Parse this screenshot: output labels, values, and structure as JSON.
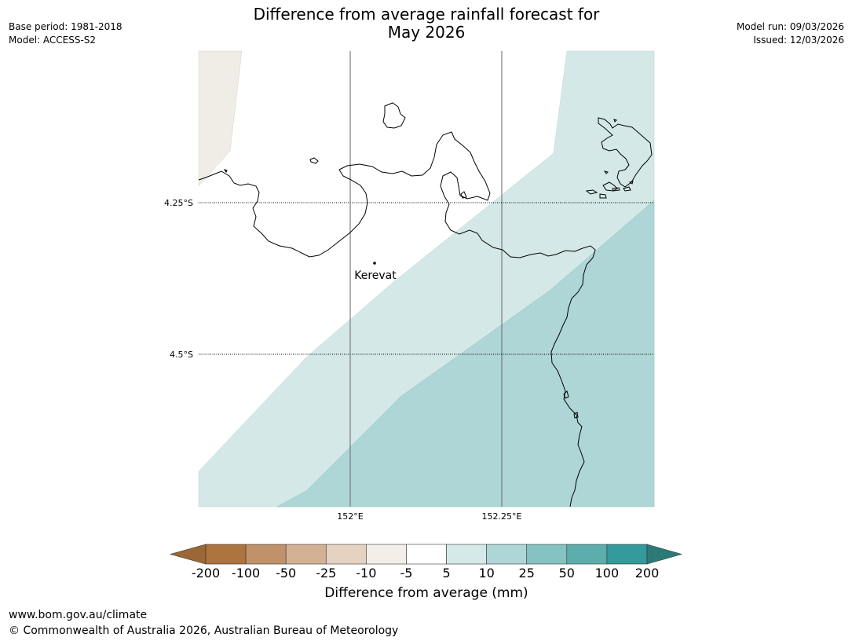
{
  "title": {
    "line1": "Difference from average rainfall forecast for",
    "line2": "May 2026"
  },
  "meta_left": {
    "base_period": "Base period: 1981-2018",
    "model": "Model: ACCESS-S2"
  },
  "meta_right": {
    "model_run": "Model run: 09/03/2026",
    "issued": "Issued: 12/03/2026"
  },
  "map": {
    "lat_labels": [
      "4.25°S",
      "4.5°S"
    ],
    "lon_labels": [
      "152°E",
      "152.25°E"
    ],
    "place_label": "Kerevat",
    "region_colors": {
      "neg_5_10": "#f0ece6",
      "pos_5_10": "#d4e8e8",
      "pos_10_25": "#aed6d6"
    }
  },
  "colorbar": {
    "label": "Difference from average (mm)",
    "ticks": [
      "-200",
      "-100",
      "-50",
      "-25",
      "-10",
      "-5",
      "5",
      "10",
      "25",
      "50",
      "100",
      "200"
    ],
    "colors": [
      "#9c6737",
      "#ad743d",
      "#c19269",
      "#d3b294",
      "#e5d2c0",
      "#f3eee8",
      "#ffffff",
      "#d6e9e9",
      "#aed6d6",
      "#84c3c1",
      "#5caead",
      "#33999a",
      "#2b7a78"
    ]
  },
  "footer": {
    "url": "www.bom.gov.au/climate",
    "copyright": "© Commonwealth of Australia 2026, Australian Bureau of Meteorology"
  }
}
